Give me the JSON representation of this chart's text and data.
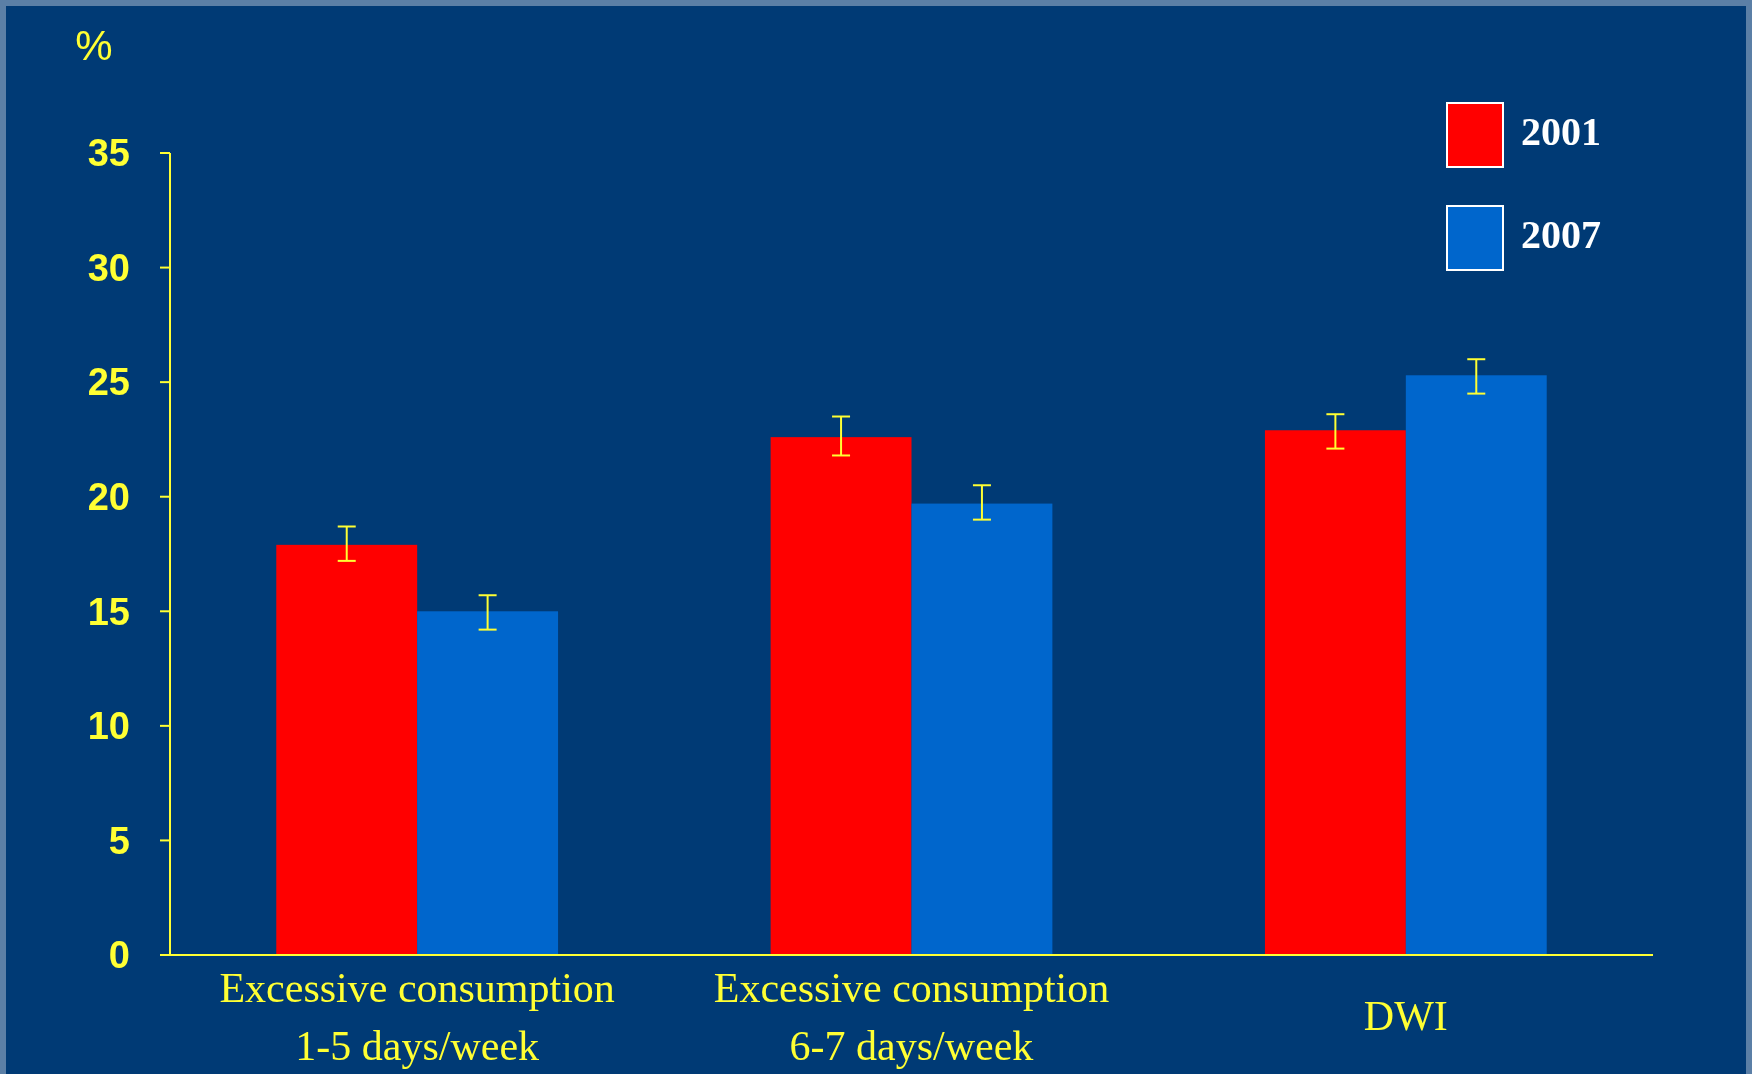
{
  "chart_data": {
    "type": "bar",
    "ylabel": "%",
    "categories": [
      "Excessive consumption 1-5 days/week",
      "Excessive consumption 6-7 days/week",
      "DWI"
    ],
    "series": [
      {
        "name": "2001",
        "color": "#ff0000",
        "values": [
          17.9,
          22.6,
          22.9
        ],
        "errors": [
          [
            17.2,
            18.7
          ],
          [
            21.8,
            23.5
          ],
          [
            22.1,
            23.6
          ]
        ]
      },
      {
        "name": "2007",
        "color": "#0066cc",
        "values": [
          15.0,
          19.7,
          25.3
        ],
        "errors": [
          [
            14.2,
            15.7
          ],
          [
            19.0,
            20.5
          ],
          [
            24.5,
            26.0
          ]
        ]
      }
    ],
    "ylim": [
      0,
      35
    ],
    "yticks": [
      0,
      5,
      10,
      15,
      20,
      25,
      30,
      35
    ],
    "grid": false,
    "legend": "top right"
  }
}
